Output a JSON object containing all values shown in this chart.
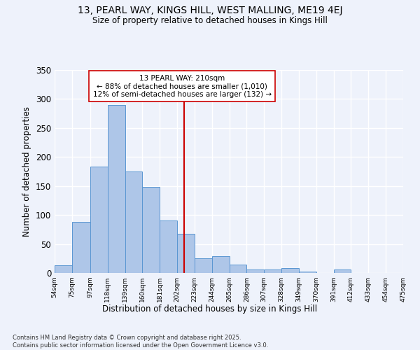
{
  "title_line1": "13, PEARL WAY, KINGS HILL, WEST MALLING, ME19 4EJ",
  "title_line2": "Size of property relative to detached houses in Kings Hill",
  "xlabel": "Distribution of detached houses by size in Kings Hill",
  "ylabel": "Number of detached properties",
  "footer_line1": "Contains HM Land Registry data © Crown copyright and database right 2025.",
  "footer_line2": "Contains public sector information licensed under the Open Government Licence v3.0.",
  "bin_labels": [
    "54sqm",
    "75sqm",
    "97sqm",
    "118sqm",
    "139sqm",
    "160sqm",
    "181sqm",
    "202sqm",
    "223sqm",
    "244sqm",
    "265sqm",
    "286sqm",
    "307sqm",
    "328sqm",
    "349sqm",
    "370sqm",
    "391sqm",
    "412sqm",
    "433sqm",
    "454sqm",
    "475sqm"
  ],
  "bin_edges": [
    54,
    75,
    97,
    118,
    139,
    160,
    181,
    202,
    223,
    244,
    265,
    286,
    307,
    328,
    349,
    370,
    391,
    412,
    433,
    454,
    475
  ],
  "bar_heights": [
    13,
    88,
    184,
    290,
    175,
    148,
    91,
    68,
    25,
    29,
    14,
    6,
    6,
    8,
    3,
    0,
    6,
    0,
    0,
    0
  ],
  "bar_color": "#aec6e8",
  "bar_edgecolor": "#5a96d2",
  "property_size": 210,
  "vline_color": "#cc0000",
  "annotation_text": "13 PEARL WAY: 210sqm\n← 88% of detached houses are smaller (1,010)\n12% of semi-detached houses are larger (132) →",
  "annotation_box_edgecolor": "#cc0000",
  "annotation_box_facecolor": "#ffffff",
  "ylim": [
    0,
    350
  ],
  "yticks": [
    0,
    50,
    100,
    150,
    200,
    250,
    300,
    350
  ],
  "background_color": "#eef2fb",
  "grid_color": "#ffffff"
}
